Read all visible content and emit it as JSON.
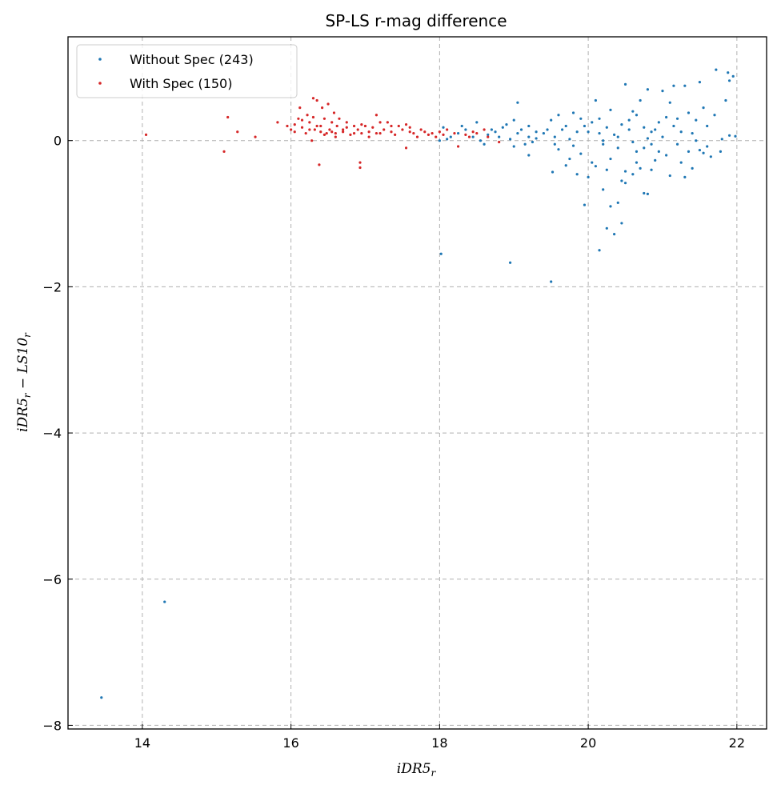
{
  "chart_data": {
    "type": "scatter",
    "title": "SP-LS r-mag difference",
    "xlabel": "iDR5",
    "xlabel_sub": "r",
    "ylabel_parts": [
      "iDR5",
      "r",
      " − LS10",
      "r"
    ],
    "xlim": [
      13.0,
      22.4
    ],
    "ylim": [
      -8.05,
      1.42
    ],
    "xticks": [
      14,
      16,
      18,
      20,
      22
    ],
    "yticks": [
      0,
      -2,
      -4,
      -6,
      -8
    ],
    "xtick_labels": [
      "14",
      "16",
      "18",
      "20",
      "22"
    ],
    "ytick_labels": [
      "0",
      "−2",
      "−4",
      "−6",
      "−8"
    ],
    "grid": true,
    "legend_position": "top-left",
    "series": [
      {
        "name": "Without Spec (243)",
        "color": "#1f77b4",
        "points": [
          [
            13.45,
            -7.62
          ],
          [
            14.3,
            -6.31
          ],
          [
            18.02,
            -1.55
          ],
          [
            18.95,
            -1.67
          ],
          [
            19.5,
            -1.93
          ],
          [
            20.15,
            -1.5
          ],
          [
            20.25,
            -1.2
          ],
          [
            20.35,
            -1.28
          ],
          [
            20.45,
            -1.13
          ],
          [
            20.3,
            -0.9
          ],
          [
            19.95,
            -0.88
          ],
          [
            20.4,
            -0.85
          ],
          [
            20.2,
            -0.67
          ],
          [
            20.5,
            -0.58
          ],
          [
            20.75,
            -0.72
          ],
          [
            20.8,
            -0.73
          ],
          [
            19.52,
            -0.43
          ],
          [
            19.7,
            -0.34
          ],
          [
            19.85,
            -0.46
          ],
          [
            20.0,
            -0.5
          ],
          [
            20.5,
            -0.42
          ],
          [
            20.6,
            -0.46
          ],
          [
            20.7,
            -0.38
          ],
          [
            21.1,
            -0.48
          ],
          [
            21.3,
            -0.5
          ],
          [
            21.4,
            -0.38
          ],
          [
            21.65,
            -0.22
          ],
          [
            21.78,
            -0.15
          ],
          [
            21.55,
            -0.17
          ],
          [
            21.5,
            -0.13
          ],
          [
            20.9,
            -0.27
          ],
          [
            20.85,
            -0.05
          ],
          [
            20.65,
            -0.15
          ],
          [
            20.4,
            -0.1
          ],
          [
            20.3,
            -0.25
          ],
          [
            20.2,
            -0.05
          ],
          [
            20.1,
            -0.35
          ],
          [
            19.9,
            -0.18
          ],
          [
            19.8,
            -0.07
          ],
          [
            19.6,
            -0.12
          ],
          [
            19.55,
            0.05
          ],
          [
            19.65,
            0.15
          ],
          [
            19.75,
            0.02
          ],
          [
            19.85,
            0.12
          ],
          [
            19.95,
            0.2
          ],
          [
            20.05,
            0.25
          ],
          [
            20.15,
            0.3
          ],
          [
            20.25,
            0.18
          ],
          [
            20.35,
            0.08
          ],
          [
            20.45,
            0.22
          ],
          [
            20.55,
            0.28
          ],
          [
            20.65,
            0.35
          ],
          [
            20.75,
            0.18
          ],
          [
            20.85,
            0.12
          ],
          [
            20.95,
            0.25
          ],
          [
            21.05,
            0.32
          ],
          [
            21.15,
            0.2
          ],
          [
            21.25,
            0.12
          ],
          [
            21.35,
            0.38
          ],
          [
            21.45,
            0.28
          ],
          [
            21.55,
            0.45
          ],
          [
            21.7,
            0.35
          ],
          [
            21.85,
            0.55
          ],
          [
            21.95,
            0.88
          ],
          [
            21.72,
            0.97
          ],
          [
            21.88,
            0.93
          ],
          [
            21.9,
            0.82
          ],
          [
            21.98,
            0.06
          ],
          [
            21.9,
            0.07
          ],
          [
            21.3,
            0.75
          ],
          [
            21.15,
            0.75
          ],
          [
            21.0,
            0.68
          ],
          [
            20.8,
            0.7
          ],
          [
            20.5,
            0.77
          ],
          [
            20.1,
            0.55
          ],
          [
            20.7,
            0.55
          ],
          [
            21.1,
            0.52
          ],
          [
            21.5,
            0.8
          ],
          [
            20.6,
            0.4
          ],
          [
            20.3,
            0.42
          ],
          [
            19.05,
            0.52
          ],
          [
            19.0,
            0.28
          ],
          [
            19.1,
            0.15
          ],
          [
            19.2,
            0.05
          ],
          [
            19.25,
            -0.02
          ],
          [
            19.3,
            0.03
          ],
          [
            19.15,
            -0.05
          ],
          [
            19.05,
            0.1
          ],
          [
            18.95,
            0.02
          ],
          [
            18.85,
            0.18
          ],
          [
            18.75,
            0.12
          ],
          [
            18.65,
            0.08
          ],
          [
            18.55,
            0.0
          ],
          [
            18.45,
            0.05
          ],
          [
            18.35,
            0.15
          ],
          [
            18.25,
            0.1
          ],
          [
            18.15,
            0.05
          ],
          [
            18.05,
            0.18
          ],
          [
            18.0,
            0.0
          ],
          [
            18.1,
            0.02
          ],
          [
            18.3,
            0.2
          ],
          [
            18.5,
            0.25
          ],
          [
            18.7,
            0.15
          ],
          [
            18.9,
            0.22
          ],
          [
            19.2,
            0.2
          ],
          [
            19.4,
            0.1
          ],
          [
            19.5,
            0.28
          ],
          [
            19.6,
            0.35
          ],
          [
            19.7,
            0.2
          ],
          [
            19.8,
            0.38
          ],
          [
            19.9,
            0.3
          ],
          [
            20.0,
            0.12
          ],
          [
            20.2,
            0.0
          ],
          [
            20.4,
            0.05
          ],
          [
            20.6,
            -0.02
          ],
          [
            20.8,
            0.03
          ],
          [
            21.0,
            0.05
          ],
          [
            21.2,
            -0.05
          ],
          [
            21.4,
            0.1
          ],
          [
            21.6,
            -0.08
          ],
          [
            21.8,
            0.02
          ],
          [
            20.05,
            -0.3
          ],
          [
            20.25,
            -0.4
          ],
          [
            20.45,
            -0.55
          ],
          [
            20.65,
            -0.3
          ],
          [
            20.85,
            -0.4
          ],
          [
            21.05,
            -0.2
          ],
          [
            21.25,
            -0.3
          ],
          [
            21.45,
            0.0
          ],
          [
            19.55,
            -0.05
          ],
          [
            19.3,
            0.12
          ],
          [
            18.8,
            0.05
          ],
          [
            18.6,
            -0.05
          ],
          [
            19.0,
            -0.08
          ],
          [
            19.2,
            -0.2
          ],
          [
            20.9,
            0.15
          ],
          [
            21.2,
            0.3
          ],
          [
            21.6,
            0.2
          ],
          [
            20.15,
            0.1
          ],
          [
            20.55,
            0.15
          ],
          [
            20.75,
            -0.1
          ],
          [
            20.95,
            -0.15
          ],
          [
            21.35,
            -0.15
          ],
          [
            19.75,
            -0.25
          ],
          [
            19.45,
            0.15
          ]
        ]
      },
      {
        "name": "With Spec (150)",
        "color": "#d62728",
        "points": [
          [
            14.05,
            0.08
          ],
          [
            15.1,
            -0.15
          ],
          [
            15.15,
            0.32
          ],
          [
            15.28,
            0.12
          ],
          [
            15.52,
            0.05
          ],
          [
            15.82,
            0.25
          ],
          [
            15.95,
            0.2
          ],
          [
            16.0,
            0.15
          ],
          [
            16.05,
            0.22
          ],
          [
            16.1,
            0.3
          ],
          [
            16.12,
            0.45
          ],
          [
            16.15,
            0.18
          ],
          [
            16.2,
            0.1
          ],
          [
            16.22,
            0.35
          ],
          [
            16.25,
            0.25
          ],
          [
            16.28,
            0.0
          ],
          [
            16.3,
            0.58
          ],
          [
            16.32,
            0.15
          ],
          [
            16.35,
            0.55
          ],
          [
            16.38,
            -0.33
          ],
          [
            16.4,
            0.2
          ],
          [
            16.42,
            0.45
          ],
          [
            16.45,
            0.3
          ],
          [
            16.48,
            0.1
          ],
          [
            16.5,
            0.5
          ],
          [
            16.52,
            0.15
          ],
          [
            16.55,
            0.25
          ],
          [
            16.58,
            0.38
          ],
          [
            16.6,
            0.05
          ],
          [
            16.62,
            0.2
          ],
          [
            16.65,
            0.3
          ],
          [
            16.7,
            0.12
          ],
          [
            16.75,
            0.25
          ],
          [
            16.8,
            0.08
          ],
          [
            16.85,
            0.2
          ],
          [
            16.9,
            0.15
          ],
          [
            16.93,
            -0.3
          ],
          [
            16.93,
            -0.37
          ],
          [
            16.95,
            0.1
          ],
          [
            17.0,
            0.2
          ],
          [
            17.05,
            0.12
          ],
          [
            17.1,
            0.18
          ],
          [
            17.15,
            0.35
          ],
          [
            17.2,
            0.1
          ],
          [
            17.25,
            0.15
          ],
          [
            17.3,
            0.25
          ],
          [
            17.35,
            0.12
          ],
          [
            17.4,
            0.08
          ],
          [
            17.45,
            0.2
          ],
          [
            17.5,
            0.15
          ],
          [
            17.55,
            0.22
          ],
          [
            17.6,
            0.18
          ],
          [
            17.65,
            0.1
          ],
          [
            17.7,
            0.05
          ],
          [
            17.75,
            0.15
          ],
          [
            17.8,
            0.12
          ],
          [
            17.85,
            0.08
          ],
          [
            17.9,
            0.1
          ],
          [
            17.95,
            0.05
          ],
          [
            18.0,
            0.12
          ],
          [
            18.05,
            0.08
          ],
          [
            18.1,
            0.15
          ],
          [
            18.2,
            0.1
          ],
          [
            18.25,
            -0.08
          ],
          [
            18.35,
            0.08
          ],
          [
            18.4,
            0.05
          ],
          [
            18.45,
            0.12
          ],
          [
            18.5,
            0.1
          ],
          [
            18.6,
            0.15
          ],
          [
            18.65,
            0.05
          ],
          [
            18.8,
            -0.02
          ],
          [
            17.55,
            -0.1
          ],
          [
            17.2,
            0.25
          ],
          [
            16.7,
            0.15
          ],
          [
            16.6,
            0.1
          ],
          [
            16.35,
            0.2
          ],
          [
            16.45,
            0.08
          ],
          [
            16.55,
            0.12
          ],
          [
            16.25,
            0.15
          ],
          [
            16.05,
            0.12
          ],
          [
            16.85,
            0.1
          ],
          [
            17.05,
            0.05
          ],
          [
            17.35,
            0.2
          ],
          [
            17.6,
            0.12
          ],
          [
            16.15,
            0.28
          ],
          [
            16.3,
            0.32
          ],
          [
            16.4,
            0.12
          ],
          [
            16.75,
            0.18
          ],
          [
            16.95,
            0.22
          ],
          [
            17.15,
            0.1
          ]
        ]
      }
    ]
  }
}
